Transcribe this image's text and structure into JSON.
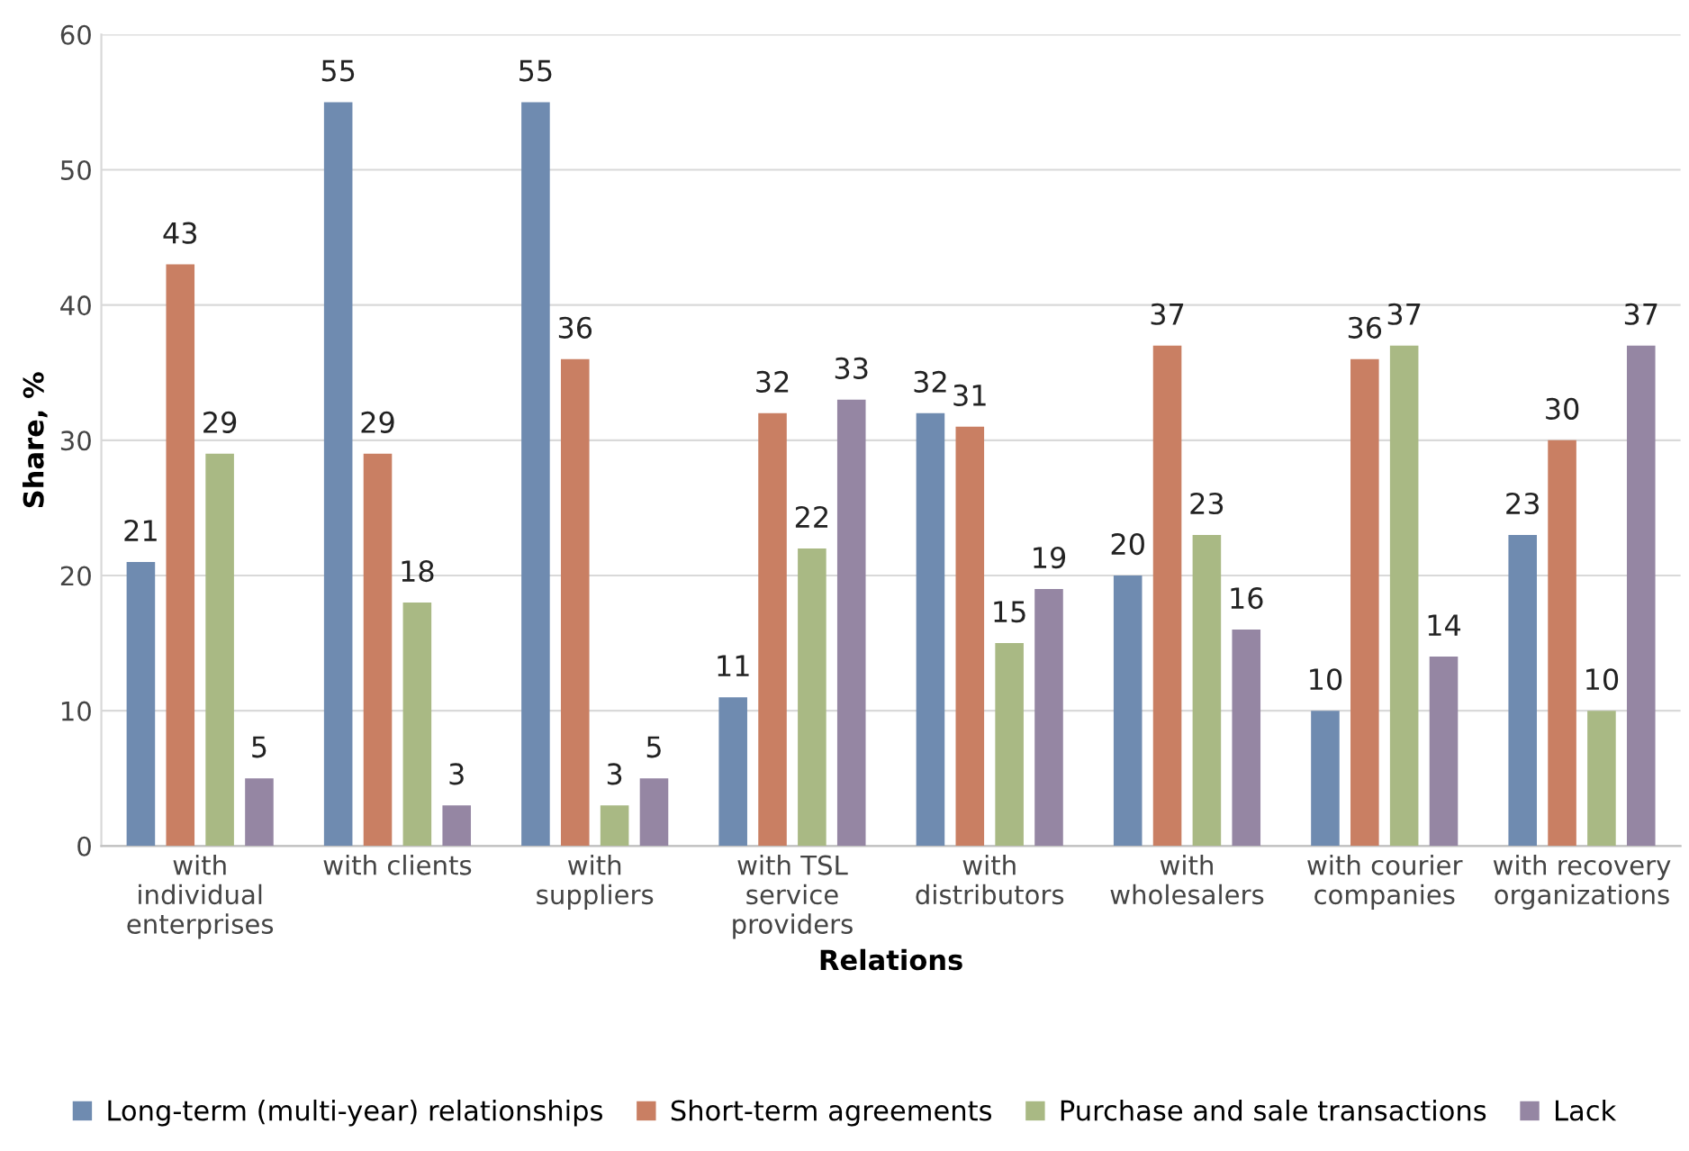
{
  "chart_data": {
    "type": "bar",
    "xlabel": "Relations",
    "ylabel": "Share, %",
    "categories": [
      "with\nindividual\nenterprises",
      "with clients",
      "with\nsuppliers",
      "with TSL\nservice\nproviders",
      "with\ndistributors",
      "with\nwholesalers",
      "with courier\ncompanies",
      "with recovery\norganizations"
    ],
    "series": [
      {
        "name": "Long-term (multi-year) relationships",
        "color": "#6f8bb0",
        "values": [
          21,
          55,
          55,
          11,
          32,
          20,
          10,
          23
        ]
      },
      {
        "name": "Short-term agreements",
        "color": "#c97f63",
        "values": [
          43,
          29,
          36,
          32,
          31,
          37,
          36,
          30
        ]
      },
      {
        "name": "Purchase and sale transactions",
        "color": "#a9b984",
        "values": [
          29,
          18,
          3,
          22,
          15,
          23,
          37,
          10
        ]
      },
      {
        "name": "Lack",
        "color": "#9586a3",
        "values": [
          5,
          3,
          5,
          33,
          19,
          16,
          14,
          37
        ]
      }
    ],
    "ylim": [
      0,
      60
    ],
    "yticks": [
      0,
      10,
      20,
      30,
      40,
      50,
      60
    ],
    "grid": "y",
    "legend": "bottom",
    "data_labels": true
  }
}
